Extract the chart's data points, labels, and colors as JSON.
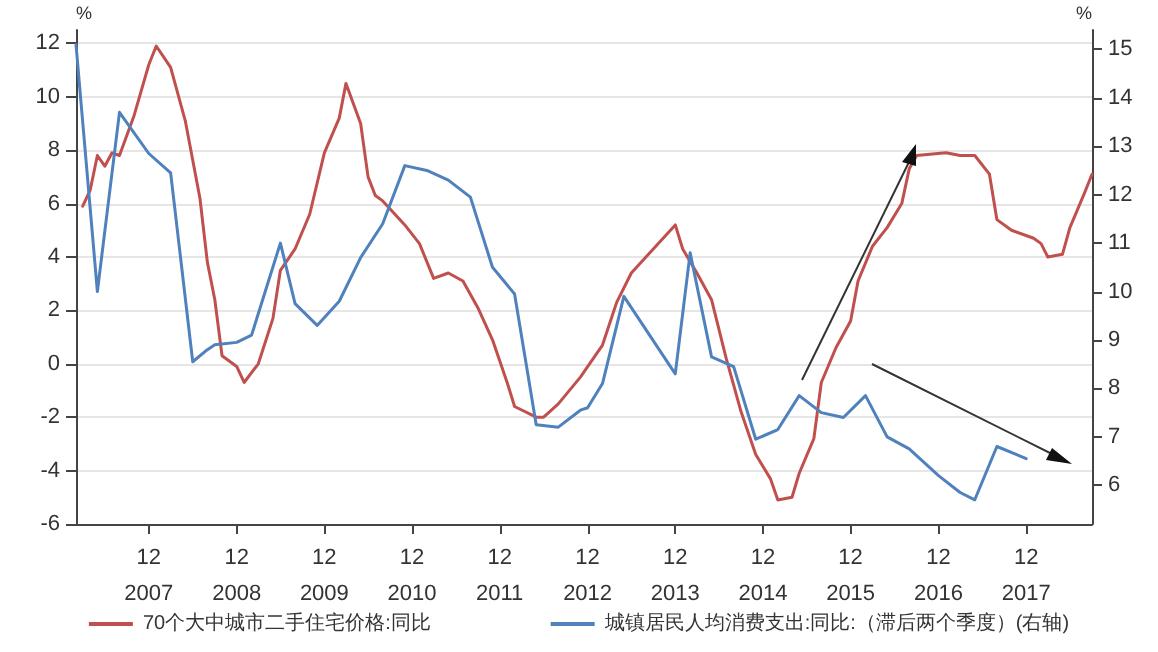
{
  "chart_data": {
    "type": "line",
    "ylabel": "%",
    "y2label": "%",
    "xlim": [
      "2007-02",
      "2018-09"
    ],
    "ylim": [
      -6,
      12.5
    ],
    "y2lim": [
      5.2,
      15.4
    ],
    "xticks": [
      {
        "value": "2007-12",
        "label": "12\n2007"
      },
      {
        "value": "2008-12",
        "label": "12\n2008"
      },
      {
        "value": "2009-12",
        "label": "12\n2009"
      },
      {
        "value": "2010-12",
        "label": "12\n2010"
      },
      {
        "value": "2011-12",
        "label": "12\n2011"
      },
      {
        "value": "2012-12",
        "label": "12\n2012"
      },
      {
        "value": "2013-12",
        "label": "12\n2013"
      },
      {
        "value": "2014-12",
        "label": "12\n2014"
      },
      {
        "value": "2015-12",
        "label": "12\n2015"
      },
      {
        "value": "2016-12",
        "label": "12\n2016"
      },
      {
        "value": "2017-12",
        "label": "12\n2017"
      }
    ],
    "yticks": [
      -6,
      -4,
      -2,
      0,
      2,
      4,
      6,
      8,
      10,
      12
    ],
    "y2ticks": [
      6,
      7,
      8,
      9,
      10,
      11,
      12,
      13,
      14,
      15
    ],
    "grid": "y",
    "legend": "bottom",
    "marker": "none",
    "line_style": "solid",
    "series": [
      {
        "name": "70个大中城市二手住宅价格:同比",
        "color": "#c0504d",
        "x": [
          "2007-03",
          "2007-04",
          "2007-05",
          "2007-06",
          "2007-07",
          "2007-08",
          "2007-10",
          "2007-12",
          "2008-01",
          "2008-03",
          "2008-05",
          "2008-07",
          "2008-08",
          "2008-09",
          "2008-10",
          "2008-12",
          "2009-01",
          "2009-03",
          "2009-05",
          "2009-06",
          "2009-08",
          "2009-10",
          "2009-12",
          "2010-02",
          "2010-03",
          "2010-05",
          "2010-06",
          "2010-07",
          "2010-08",
          "2010-11",
          "2011-01",
          "2011-03",
          "2011-05",
          "2011-07",
          "2011-09",
          "2011-11",
          "2012-01",
          "2012-02",
          "2012-05",
          "2012-06",
          "2012-08",
          "2012-11",
          "2013-02",
          "2013-04",
          "2013-06",
          "2013-08",
          "2013-10",
          "2013-12",
          "2014-01",
          "2014-03",
          "2014-05",
          "2014-07",
          "2014-09",
          "2014-11",
          "2015-01",
          "2015-02",
          "2015-04",
          "2015-05",
          "2015-07",
          "2015-08",
          "2015-10",
          "2015-12",
          "2016-01",
          "2016-03",
          "2016-05",
          "2016-07",
          "2016-08",
          "2016-09",
          "2017-01",
          "2017-03",
          "2017-05",
          "2017-07",
          "2017-08",
          "2017-10",
          "2018-01",
          "2018-02",
          "2018-03",
          "2018-05",
          "2018-06",
          "2018-08",
          "2018-09"
        ],
        "values": [
          5.9,
          6.5,
          7.8,
          7.4,
          7.9,
          7.8,
          9.3,
          11.2,
          11.9,
          11.1,
          9.1,
          6.2,
          3.8,
          2.4,
          0.3,
          -0.1,
          -0.7,
          0,
          1.7,
          3.5,
          4.3,
          5.6,
          7.9,
          9.2,
          10.5,
          9.0,
          7.0,
          6.3,
          6.1,
          5.2,
          4.5,
          3.2,
          3.4,
          3.1,
          2.1,
          0.9,
          -0.7,
          -1.6,
          -2.0,
          -2.0,
          -1.5,
          -0.5,
          0.7,
          2.3,
          3.4,
          4.0,
          4.6,
          5.2,
          4.3,
          3.4,
          2.4,
          0.2,
          -1.8,
          -3.4,
          -4.3,
          -5.1,
          -5.0,
          -4.1,
          -2.8,
          -0.7,
          0.6,
          1.6,
          3.1,
          4.4,
          5.1,
          6.0,
          7.3,
          7.8,
          7.9,
          7.8,
          7.8,
          7.1,
          5.4,
          5.0,
          4.7,
          4.5,
          4.0,
          4.1,
          5.1,
          6.4,
          7.1
        ]
      },
      {
        "name": "城镇居民人均消费支出:同比:（滞后两个季度）(右轴)",
        "color": "#4f81bd",
        "axis": "y2",
        "x": [
          "2007-02",
          "2007-05",
          "2007-08",
          "2007-12",
          "2008-03",
          "2008-06",
          "2008-08",
          "2008-09",
          "2008-12",
          "2009-02",
          "2009-06",
          "2009-08",
          "2009-11",
          "2010-02",
          "2010-05",
          "2010-08",
          "2010-11",
          "2011-02",
          "2011-05",
          "2011-08",
          "2011-11",
          "2012-02",
          "2012-05",
          "2012-08",
          "2012-11",
          "2012-12",
          "2013-02",
          "2013-05",
          "2013-12",
          "2014-02",
          "2014-05",
          "2014-08",
          "2014-11",
          "2015-02",
          "2015-05",
          "2015-08",
          "2015-11",
          "2016-02",
          "2016-05",
          "2016-08",
          "2016-12",
          "2017-03",
          "2017-05",
          "2017-08",
          "2017-12"
        ],
        "values": [
          15.1,
          10.0,
          13.7,
          12.85,
          12.45,
          8.55,
          8.8,
          8.9,
          8.95,
          9.1,
          11.0,
          9.75,
          9.3,
          9.8,
          10.7,
          11.4,
          12.6,
          12.5,
          12.3,
          11.95,
          10.5,
          9.95,
          7.25,
          7.2,
          7.55,
          7.6,
          8.1,
          9.9,
          8.3,
          10.8,
          8.65,
          8.45,
          6.95,
          7.15,
          7.85,
          7.5,
          7.4,
          7.85,
          7.0,
          6.75,
          6.2,
          5.85,
          5.7,
          6.8,
          6.55
        ]
      }
    ]
  }
}
